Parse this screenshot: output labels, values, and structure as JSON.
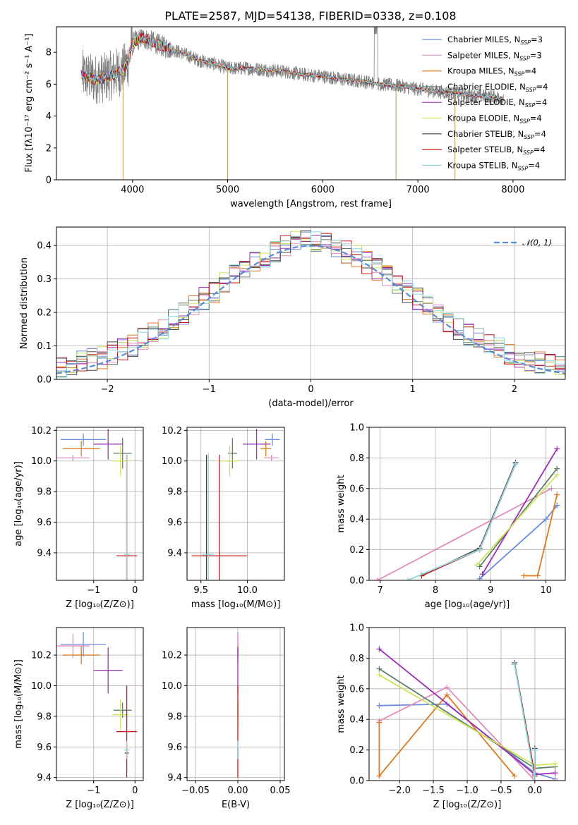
{
  "title": "PLATE=2587, MJD=54138, FIBERID=0338, z=0.108",
  "colors": {
    "Chabrier MILES": "#6a8be0",
    "Salpeter MILES": "#e28bbd",
    "Kroupa MILES": "#dd7a22",
    "Chabrier ELODIE": "#5f7f6a",
    "Salpeter ELODIE": "#9c2db5",
    "Kroupa ELODIE": "#cde35a",
    "Chabrier STELIB": "#444444",
    "Salpeter STELIB": "#c41a1a",
    "Kroupa STELIB": "#8fd6df",
    "data": "#7f7f7f"
  },
  "chart_data": [
    {
      "id": "spectrum",
      "type": "line",
      "xlabel": "wavelength [Angstrom, rest frame]",
      "ylabel": "Flux [fλ10⁻¹⁷ erg cm⁻² s⁻¹ A⁻¹]",
      "xlim": [
        3200,
        8550
      ],
      "ylim": [
        0,
        9.6
      ],
      "xticks": [
        4000,
        5000,
        6000,
        7000,
        8000
      ],
      "yticks": [
        0,
        2,
        4,
        6,
        8
      ],
      "legend_position": "top-right",
      "legend": [
        {
          "name": "Chabrier MILES, N",
          "sub": "SSP",
          "rest": "=3"
        },
        {
          "name": "Salpeter MILES, N",
          "sub": "SSP",
          "rest": "=3"
        },
        {
          "name": "Kroupa MILES, N",
          "sub": "SSP",
          "rest": "=4"
        },
        {
          "name": "Chabrier ELODIE, N",
          "sub": "SSP",
          "rest": "=4"
        },
        {
          "name": "Salpeter ELODIE, N",
          "sub": "SSP",
          "rest": "=4"
        },
        {
          "name": "Kroupa ELODIE, N",
          "sub": "SSP",
          "rest": "=4"
        },
        {
          "name": "Chabrier STELIB, N",
          "sub": "SSP",
          "rest": "=4"
        },
        {
          "name": "Salpeter STELIB, N",
          "sub": "SSP",
          "rest": "=4"
        },
        {
          "name": "Kroupa STELIB, N",
          "sub": "SSP",
          "rest": "=4"
        }
      ],
      "continuum": {
        "x": [
          3470,
          3600,
          3700,
          3800,
          3900,
          3950,
          4000,
          4100,
          4200,
          4300,
          4500,
          4700,
          4900,
          5000,
          5200,
          5400,
          5600,
          5800,
          6000,
          6200,
          6400,
          6600,
          6800,
          7000,
          7200,
          7400,
          7600,
          7800,
          7900
        ],
        "y": [
          6.6,
          6.3,
          6.4,
          6.6,
          6.9,
          7.3,
          8.6,
          8.9,
          8.7,
          8.4,
          8.0,
          7.5,
          7.2,
          7.0,
          7.0,
          6.9,
          6.8,
          6.6,
          6.5,
          6.3,
          6.2,
          6.0,
          5.9,
          5.7,
          5.55,
          5.4,
          5.3,
          5.2,
          5.1
        ]
      },
      "bad_pixels": [
        3900,
        5000,
        6770,
        7390
      ]
    },
    {
      "id": "residuals",
      "type": "bar",
      "xlabel": "(data-model)/error",
      "ylabel": "Normed distribution",
      "xlim": [
        -2.5,
        2.5
      ],
      "ylim": [
        0,
        0.455
      ],
      "xticks": [
        -2,
        -1,
        0,
        1,
        2
      ],
      "yticks": [
        0.0,
        0.1,
        0.2,
        0.3,
        0.4
      ],
      "legend_position": "top-right",
      "legend_label": "𝒩(0, 1)",
      "bin_width": 0.1
    },
    {
      "id": "age_vs_Z",
      "type": "scatter",
      "xlabel": "Z [log₁₀(Z/Z⊙)]",
      "ylabel": "age  [log₁₀(age/yr)]",
      "xlim": [
        -1.9,
        0.2
      ],
      "ylim": [
        9.22,
        10.22
      ],
      "xticks": [
        -1,
        0
      ],
      "yticks": [
        9.4,
        9.6,
        9.8,
        10.0,
        10.2
      ],
      "points": [
        {
          "m": "Chabrier MILES",
          "x": -1.25,
          "xe": 0.55,
          "y": 10.14,
          "ye": 0.04
        },
        {
          "m": "Salpeter MILES",
          "x": -1.5,
          "xe": 0.4,
          "y": 10.02,
          "ye": 0.02
        },
        {
          "m": "Kroupa MILES",
          "x": -1.3,
          "xe": 0.45,
          "y": 10.08,
          "ye": 0.05
        },
        {
          "m": "Chabrier ELODIE",
          "x": -0.3,
          "xe": 0.22,
          "y": 10.05,
          "ye": 0.1
        },
        {
          "m": "Salpeter ELODIE",
          "x": -0.65,
          "xe": 0.35,
          "y": 10.11,
          "ye": 0.1
        },
        {
          "m": "Kroupa ELODIE",
          "x": -0.35,
          "xe": 0.2,
          "y": 10.0,
          "ye": 0.1
        },
        {
          "m": "Chabrier STELIB",
          "x": -0.2,
          "xe": 0.05,
          "y": 9.38,
          "ye": 0.66
        },
        {
          "m": "Salpeter STELIB",
          "x": -0.2,
          "xe": 0.25,
          "y": 9.38,
          "ye": 0.66
        },
        {
          "m": "Kroupa STELIB",
          "x": -0.2,
          "xe": 0.07,
          "y": 9.39,
          "ye": 0.66
        }
      ]
    },
    {
      "id": "age_vs_mass",
      "type": "scatter",
      "xlabel": "mass [log₁₀(M/M⊙)]",
      "ylabel": "",
      "xlim": [
        9.35,
        10.4
      ],
      "ylim": [
        9.22,
        10.22
      ],
      "xticks": [
        9.5,
        10.0
      ],
      "yticks": [
        9.4,
        9.6,
        9.8,
        10.0,
        10.2
      ],
      "points": [
        {
          "m": "Chabrier MILES",
          "x": 10.27,
          "xe": 0.08,
          "y": 10.14,
          "ye": 0.04
        },
        {
          "m": "Salpeter MILES",
          "x": 10.26,
          "xe": 0.08,
          "y": 10.02,
          "ye": 0.02
        },
        {
          "m": "Kroupa MILES",
          "x": 10.2,
          "xe": 0.06,
          "y": 10.08,
          "ye": 0.05
        },
        {
          "m": "Chabrier ELODIE",
          "x": 9.84,
          "xe": 0.05,
          "y": 10.05,
          "ye": 0.1
        },
        {
          "m": "Salpeter ELODIE",
          "x": 10.1,
          "xe": 0.15,
          "y": 10.11,
          "ye": 0.1
        },
        {
          "m": "Kroupa ELODIE",
          "x": 9.81,
          "xe": 0.1,
          "y": 10.0,
          "ye": 0.1
        },
        {
          "m": "Chabrier STELIB",
          "x": 9.56,
          "xe": 0.04,
          "y": 9.38,
          "ye": 0.66
        },
        {
          "m": "Salpeter STELIB",
          "x": 9.7,
          "xe": 0.3,
          "y": 9.38,
          "ye": 0.66
        },
        {
          "m": "Kroupa STELIB",
          "x": 9.58,
          "xe": 0.06,
          "y": 9.39,
          "ye": 0.66
        }
      ]
    },
    {
      "id": "mass_weight_vs_age",
      "type": "line",
      "xlabel": "age  [log₁₀(age/yr)]",
      "ylabel": "mass weight",
      "xlim": [
        6.8,
        10.35
      ],
      "ylim": [
        0,
        1.0
      ],
      "xticks": [
        7,
        8,
        9,
        10
      ],
      "yticks": [
        0.0,
        0.2,
        0.4,
        0.6,
        0.8,
        1.0
      ],
      "series": [
        {
          "m": "Chabrier MILES",
          "x": [
            8.8,
            10.0,
            10.2,
            10.2
          ],
          "y": [
            0.01,
            0.4,
            0.49,
            0.49
          ]
        },
        {
          "m": "Salpeter MILES",
          "x": [
            6.95,
            10.1
          ],
          "y": [
            0.0,
            0.6
          ]
        },
        {
          "m": "Kroupa MILES",
          "x": [
            9.6,
            9.85,
            10.2
          ],
          "y": [
            0.03,
            0.03,
            0.56
          ]
        },
        {
          "m": "Chabrier ELODIE",
          "x": [
            8.8,
            10.2
          ],
          "y": [
            0.09,
            0.73
          ]
        },
        {
          "m": "Salpeter ELODIE",
          "x": [
            8.85,
            10.2
          ],
          "y": [
            0.04,
            0.86
          ]
        },
        {
          "m": "Kroupa ELODIE",
          "x": [
            8.75,
            10.2
          ],
          "y": [
            0.1,
            0.69
          ]
        },
        {
          "m": "Chabrier STELIB",
          "x": [
            7.75,
            8.8,
            9.45
          ],
          "y": [
            0.03,
            0.21,
            0.77
          ]
        },
        {
          "m": "Salpeter STELIB",
          "x": [
            7.75,
            8.8,
            9.45
          ],
          "y": [
            0.03,
            0.2,
            0.76
          ]
        },
        {
          "m": "Kroupa STELIB",
          "x": [
            7.5,
            8.8,
            9.45
          ],
          "y": [
            0.0,
            0.2,
            0.76
          ]
        }
      ]
    },
    {
      "id": "mass_vs_Z",
      "type": "scatter",
      "xlabel": "Z [log₁₀(Z/Z⊙)]",
      "ylabel": "mass [log₁₀(M/M⊙)]",
      "xlim": [
        -1.9,
        0.2
      ],
      "ylim": [
        9.38,
        10.38
      ],
      "xticks": [
        -1,
        0
      ],
      "yticks": [
        9.4,
        9.6,
        9.8,
        10.0,
        10.2
      ],
      "points": [
        {
          "m": "Chabrier MILES",
          "x": -1.25,
          "xe": 0.55,
          "y": 10.27,
          "ye": 0.08
        },
        {
          "m": "Salpeter MILES",
          "x": -1.5,
          "xe": 0.4,
          "y": 10.26,
          "ye": 0.08
        },
        {
          "m": "Kroupa MILES",
          "x": -1.3,
          "xe": 0.45,
          "y": 10.2,
          "ye": 0.06
        },
        {
          "m": "Chabrier ELODIE",
          "x": -0.3,
          "xe": 0.22,
          "y": 9.84,
          "ye": 0.05
        },
        {
          "m": "Salpeter ELODIE",
          "x": -0.65,
          "xe": 0.35,
          "y": 10.1,
          "ye": 0.15
        },
        {
          "m": "Kroupa ELODIE",
          "x": -0.35,
          "xe": 0.2,
          "y": 9.81,
          "ye": 0.1
        },
        {
          "m": "Chabrier STELIB",
          "x": -0.2,
          "xe": 0.05,
          "y": 9.56,
          "ye": 0.04
        },
        {
          "m": "Salpeter STELIB",
          "x": -0.2,
          "xe": 0.25,
          "y": 9.7,
          "ye": 0.3
        },
        {
          "m": "Kroupa STELIB",
          "x": -0.2,
          "xe": 0.07,
          "y": 9.58,
          "ye": 0.06
        }
      ]
    },
    {
      "id": "mass_vs_ebv",
      "type": "scatter",
      "xlabel": "E(B-V)",
      "ylabel": "",
      "xlim": [
        -0.06,
        0.055
      ],
      "ylim": [
        9.38,
        10.38
      ],
      "xticks": [
        -0.05,
        0.0,
        0.05
      ],
      "xticklabels": [
        "−0.05",
        "0.00",
        "0.05"
      ],
      "yticks": [
        9.4,
        9.6,
        9.8,
        10.0,
        10.2
      ],
      "points": [
        {
          "m": "Chabrier MILES",
          "x": 0.0,
          "xe": 0.0,
          "y": 10.27,
          "ye": 0.08
        },
        {
          "m": "Salpeter MILES",
          "x": 0.0,
          "xe": 0.0,
          "y": 10.26,
          "ye": 0.08
        },
        {
          "m": "Kroupa MILES",
          "x": 0.0,
          "xe": 0.0,
          "y": 10.2,
          "ye": 0.06
        },
        {
          "m": "Chabrier ELODIE",
          "x": 0.0,
          "xe": 0.0,
          "y": 9.84,
          "ye": 0.05
        },
        {
          "m": "Salpeter ELODIE",
          "x": 0.0,
          "xe": 0.0,
          "y": 10.1,
          "ye": 0.15
        },
        {
          "m": "Kroupa ELODIE",
          "x": 0.0,
          "xe": 0.0,
          "y": 9.81,
          "ye": 0.1
        },
        {
          "m": "Chabrier STELIB",
          "x": 0.0,
          "xe": 0.0,
          "y": 9.56,
          "ye": 0.04
        },
        {
          "m": "Salpeter STELIB",
          "x": 0.0,
          "xe": 0.0,
          "y": 9.7,
          "ye": 0.3
        },
        {
          "m": "Kroupa STELIB",
          "x": 0.0,
          "xe": 0.0,
          "y": 9.58,
          "ye": 0.06
        }
      ]
    },
    {
      "id": "mass_weight_vs_Z",
      "type": "line",
      "xlabel": "Z [log₁₀(Z/Z⊙)]",
      "ylabel": "mass weight",
      "xlim": [
        -2.45,
        0.45
      ],
      "ylim": [
        0,
        1.0
      ],
      "xticks": [
        -2.0,
        -1.5,
        -1.0,
        -0.5,
        0.0
      ],
      "xticklabels": [
        "−2.0",
        "−1.5",
        "−1.0",
        "−0.5",
        "0.0"
      ],
      "yticks": [
        0.0,
        0.2,
        0.4,
        0.6,
        0.8,
        1.0
      ],
      "series": [
        {
          "m": "Chabrier MILES",
          "x": [
            -2.3,
            -1.3,
            0.0,
            0.3
          ],
          "y": [
            0.49,
            0.5,
            0.05,
            0.01
          ]
        },
        {
          "m": "Salpeter MILES",
          "x": [
            -2.3,
            -1.3,
            0.0,
            0.3
          ],
          "y": [
            0.39,
            0.61,
            0.0,
            0.0
          ]
        },
        {
          "m": "Kroupa MILES",
          "x": [
            -2.3,
            -2.3,
            -1.3,
            -0.3
          ],
          "y": [
            0.38,
            0.03,
            0.56,
            0.03
          ]
        },
        {
          "m": "Chabrier ELODIE",
          "x": [
            -2.3,
            0.0,
            0.3
          ],
          "y": [
            0.73,
            0.08,
            0.09
          ]
        },
        {
          "m": "Salpeter ELODIE",
          "x": [
            -2.3,
            0.0,
            0.3
          ],
          "y": [
            0.86,
            0.04,
            0.05
          ]
        },
        {
          "m": "Kroupa ELODIE",
          "x": [
            -2.3,
            0.0,
            0.3
          ],
          "y": [
            0.69,
            0.1,
            0.11
          ]
        },
        {
          "m": "Chabrier STELIB",
          "x": [
            -0.3,
            0.0,
            0.0
          ],
          "y": [
            0.77,
            0.03,
            0.21
          ]
        },
        {
          "m": "Salpeter STELIB",
          "x": [
            -0.3,
            0.0,
            0.0
          ],
          "y": [
            0.76,
            0.03,
            0.2
          ]
        },
        {
          "m": "Kroupa STELIB",
          "x": [
            -0.3,
            0.0,
            0.0
          ],
          "y": [
            0.76,
            0.0,
            0.2
          ]
        }
      ]
    }
  ]
}
